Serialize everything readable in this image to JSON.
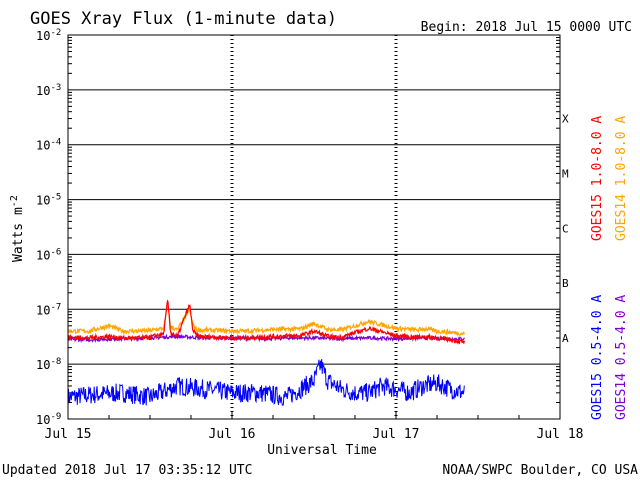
{
  "header": {
    "title": "GOES Xray Flux (1-minute data)",
    "begin": "Begin:  2018 Jul 15 0000 UTC"
  },
  "footer": {
    "updated": "Updated 2018 Jul 17 03:35:12 UTC",
    "credit": "NOAA/SWPC Boulder, CO USA"
  },
  "chart_data": {
    "type": "line",
    "title": "GOES Xray Flux (1-minute data)",
    "xlabel": "Universal Time",
    "ylabel": "Watts m-2",
    "ylabel_text": "Watts m",
    "ylabel_sup": "-2",
    "x_scale": "time",
    "y_scale": "log",
    "xlim": [
      "2018-07-15 00:00",
      "2018-07-18 00:00"
    ],
    "ylim": [
      1e-09,
      0.01
    ],
    "grid": "horizontal lines at each decade",
    "x_ticks": [
      {
        "label": "Jul 15",
        "value": "2018-07-15"
      },
      {
        "label": "Jul 16",
        "value": "2018-07-16"
      },
      {
        "label": "Jul 17",
        "value": "2018-07-17"
      },
      {
        "label": "Jul 18",
        "value": "2018-07-18"
      }
    ],
    "y_ticks": [
      {
        "base": "10",
        "exp": "-2",
        "value": 0.01
      },
      {
        "base": "10",
        "exp": "-3",
        "value": 0.001
      },
      {
        "base": "10",
        "exp": "-4",
        "value": 0.0001
      },
      {
        "base": "10",
        "exp": "-5",
        "value": 1e-05
      },
      {
        "base": "10",
        "exp": "-6",
        "value": 1e-06
      },
      {
        "base": "10",
        "exp": "-7",
        "value": 1e-07
      },
      {
        "base": "10",
        "exp": "-8",
        "value": 1e-08
      },
      {
        "base": "10",
        "exp": "-9",
        "value": 1e-09
      }
    ],
    "flare_classes": [
      {
        "label": "X",
        "value": 0.0003
      },
      {
        "label": "M",
        "value": 3e-05
      },
      {
        "label": "C",
        "value": 3e-06
      },
      {
        "label": "B",
        "value": 3e-07
      },
      {
        "label": "A",
        "value": 3e-08
      }
    ],
    "legend_placement": "right, rotated",
    "series": [
      {
        "name": "GOES15 1.0-8.0 A",
        "color": "#ff0000",
        "x_hours": [
          0,
          3,
          6,
          8,
          10,
          12,
          14,
          14.6,
          15,
          16,
          17.8,
          18.3,
          19,
          22,
          26,
          30,
          34,
          36,
          38,
          40,
          44,
          48,
          51,
          52.3,
          54,
          56,
          58
        ],
        "values": [
          3.1e-08,
          3e-08,
          3.2e-08,
          3e-08,
          3e-08,
          3.1e-08,
          3.6e-08,
          1.5e-07,
          3.8e-08,
          3.2e-08,
          1.2e-07,
          4e-08,
          3.2e-08,
          3.1e-08,
          3e-08,
          3.2e-08,
          3.3e-08,
          4e-08,
          3.2e-08,
          3.1e-08,
          4.5e-08,
          3.3e-08,
          3.1e-08,
          3.2e-08,
          3e-08,
          2.8e-08,
          2.5e-08
        ]
      },
      {
        "name": "GOES14 1.0-8.0 A",
        "color": "#ffa500",
        "x_hours": [
          0,
          3,
          6,
          8,
          10,
          12,
          14,
          14.6,
          15,
          16,
          17.8,
          18.3,
          19,
          22,
          26,
          30,
          34,
          36,
          38,
          40,
          44,
          48,
          51,
          52.3,
          54,
          56,
          58
        ],
        "values": [
          4e-08,
          4e-08,
          5e-08,
          4e-08,
          4e-08,
          4.1e-08,
          4.5e-08,
          1.3e-07,
          4.8e-08,
          4.2e-08,
          1e-07,
          5e-08,
          4.2e-08,
          4.1e-08,
          4e-08,
          4.3e-08,
          4.4e-08,
          5.5e-08,
          4.3e-08,
          4.2e-08,
          6e-08,
          4.5e-08,
          4.2e-08,
          4.4e-08,
          4e-08,
          3.8e-08,
          3.6e-08
        ]
      },
      {
        "name": "GOES15 0.5-4.0 A",
        "color": "#0000ff",
        "x_hours": [
          0,
          4,
          8,
          12,
          16,
          20,
          24,
          28,
          32,
          34,
          36,
          37,
          38,
          40,
          42,
          44,
          46,
          48,
          50,
          52,
          54,
          56,
          58
        ],
        "values": [
          2.5e-09,
          2.8e-09,
          3e-09,
          2.5e-09,
          4e-09,
          3.5e-09,
          3e-09,
          3e-09,
          2.5e-09,
          3.5e-09,
          5e-09,
          1e-08,
          5e-09,
          3.5e-09,
          3e-09,
          3e-09,
          4e-09,
          3.5e-09,
          3e-09,
          4e-09,
          4.5e-09,
          3.5e-09,
          3e-09
        ]
      },
      {
        "name": "GOES14 0.5-4.0 A",
        "color": "#7b00d4",
        "x_hours": [
          0,
          4,
          8,
          12,
          16,
          20,
          24,
          28,
          32,
          36,
          40,
          44,
          48,
          52,
          56,
          58
        ],
        "values": [
          2.8e-08,
          2.8e-08,
          2.9e-08,
          3e-08,
          3.2e-08,
          3e-08,
          3e-08,
          2.9e-08,
          3e-08,
          3e-08,
          2.9e-08,
          3e-08,
          2.9e-08,
          3e-08,
          2.9e-08,
          2.9e-08
        ]
      }
    ]
  }
}
